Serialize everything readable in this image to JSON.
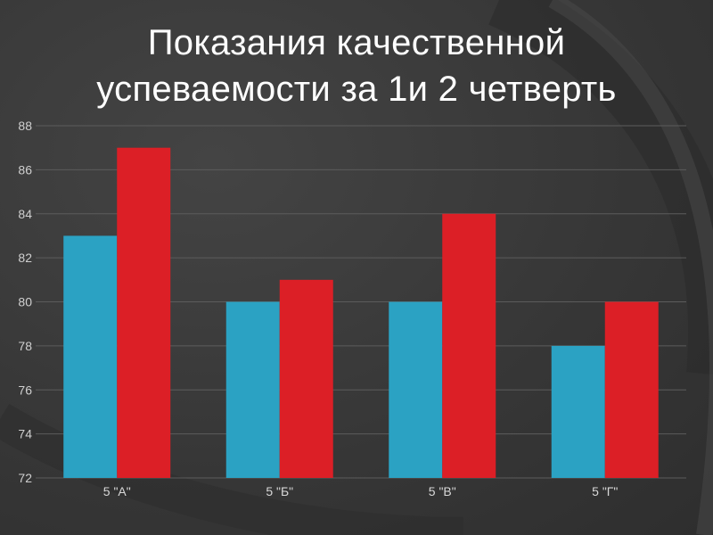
{
  "title": {
    "line1": "Показания качественной",
    "line2": "успеваемости за 1и 2 четверть"
  },
  "colors": {
    "background": "#3a3a3a",
    "series1": "#2ba2c3",
    "series2": "#dc1f26",
    "grid": "#5c5c5c",
    "text": "#ffffff"
  },
  "chart_data": {
    "type": "bar",
    "title": "Показания качественной успеваемости за 1и 2 четверть",
    "xlabel": "",
    "ylabel": "",
    "categories": [
      "5 \"А\"",
      "5 \"Б\"",
      "5 \"В\"",
      "5 \"Г\""
    ],
    "series": [
      {
        "values": [
          83,
          80,
          80,
          78
        ],
        "color": "#2ba2c3"
      },
      {
        "values": [
          87,
          81,
          84,
          80
        ],
        "color": "#dc1f26"
      }
    ],
    "ylim": [
      72,
      88
    ],
    "yticks": [
      72,
      74,
      76,
      78,
      80,
      82,
      84,
      86,
      88
    ],
    "grid": true,
    "legend": "none"
  }
}
